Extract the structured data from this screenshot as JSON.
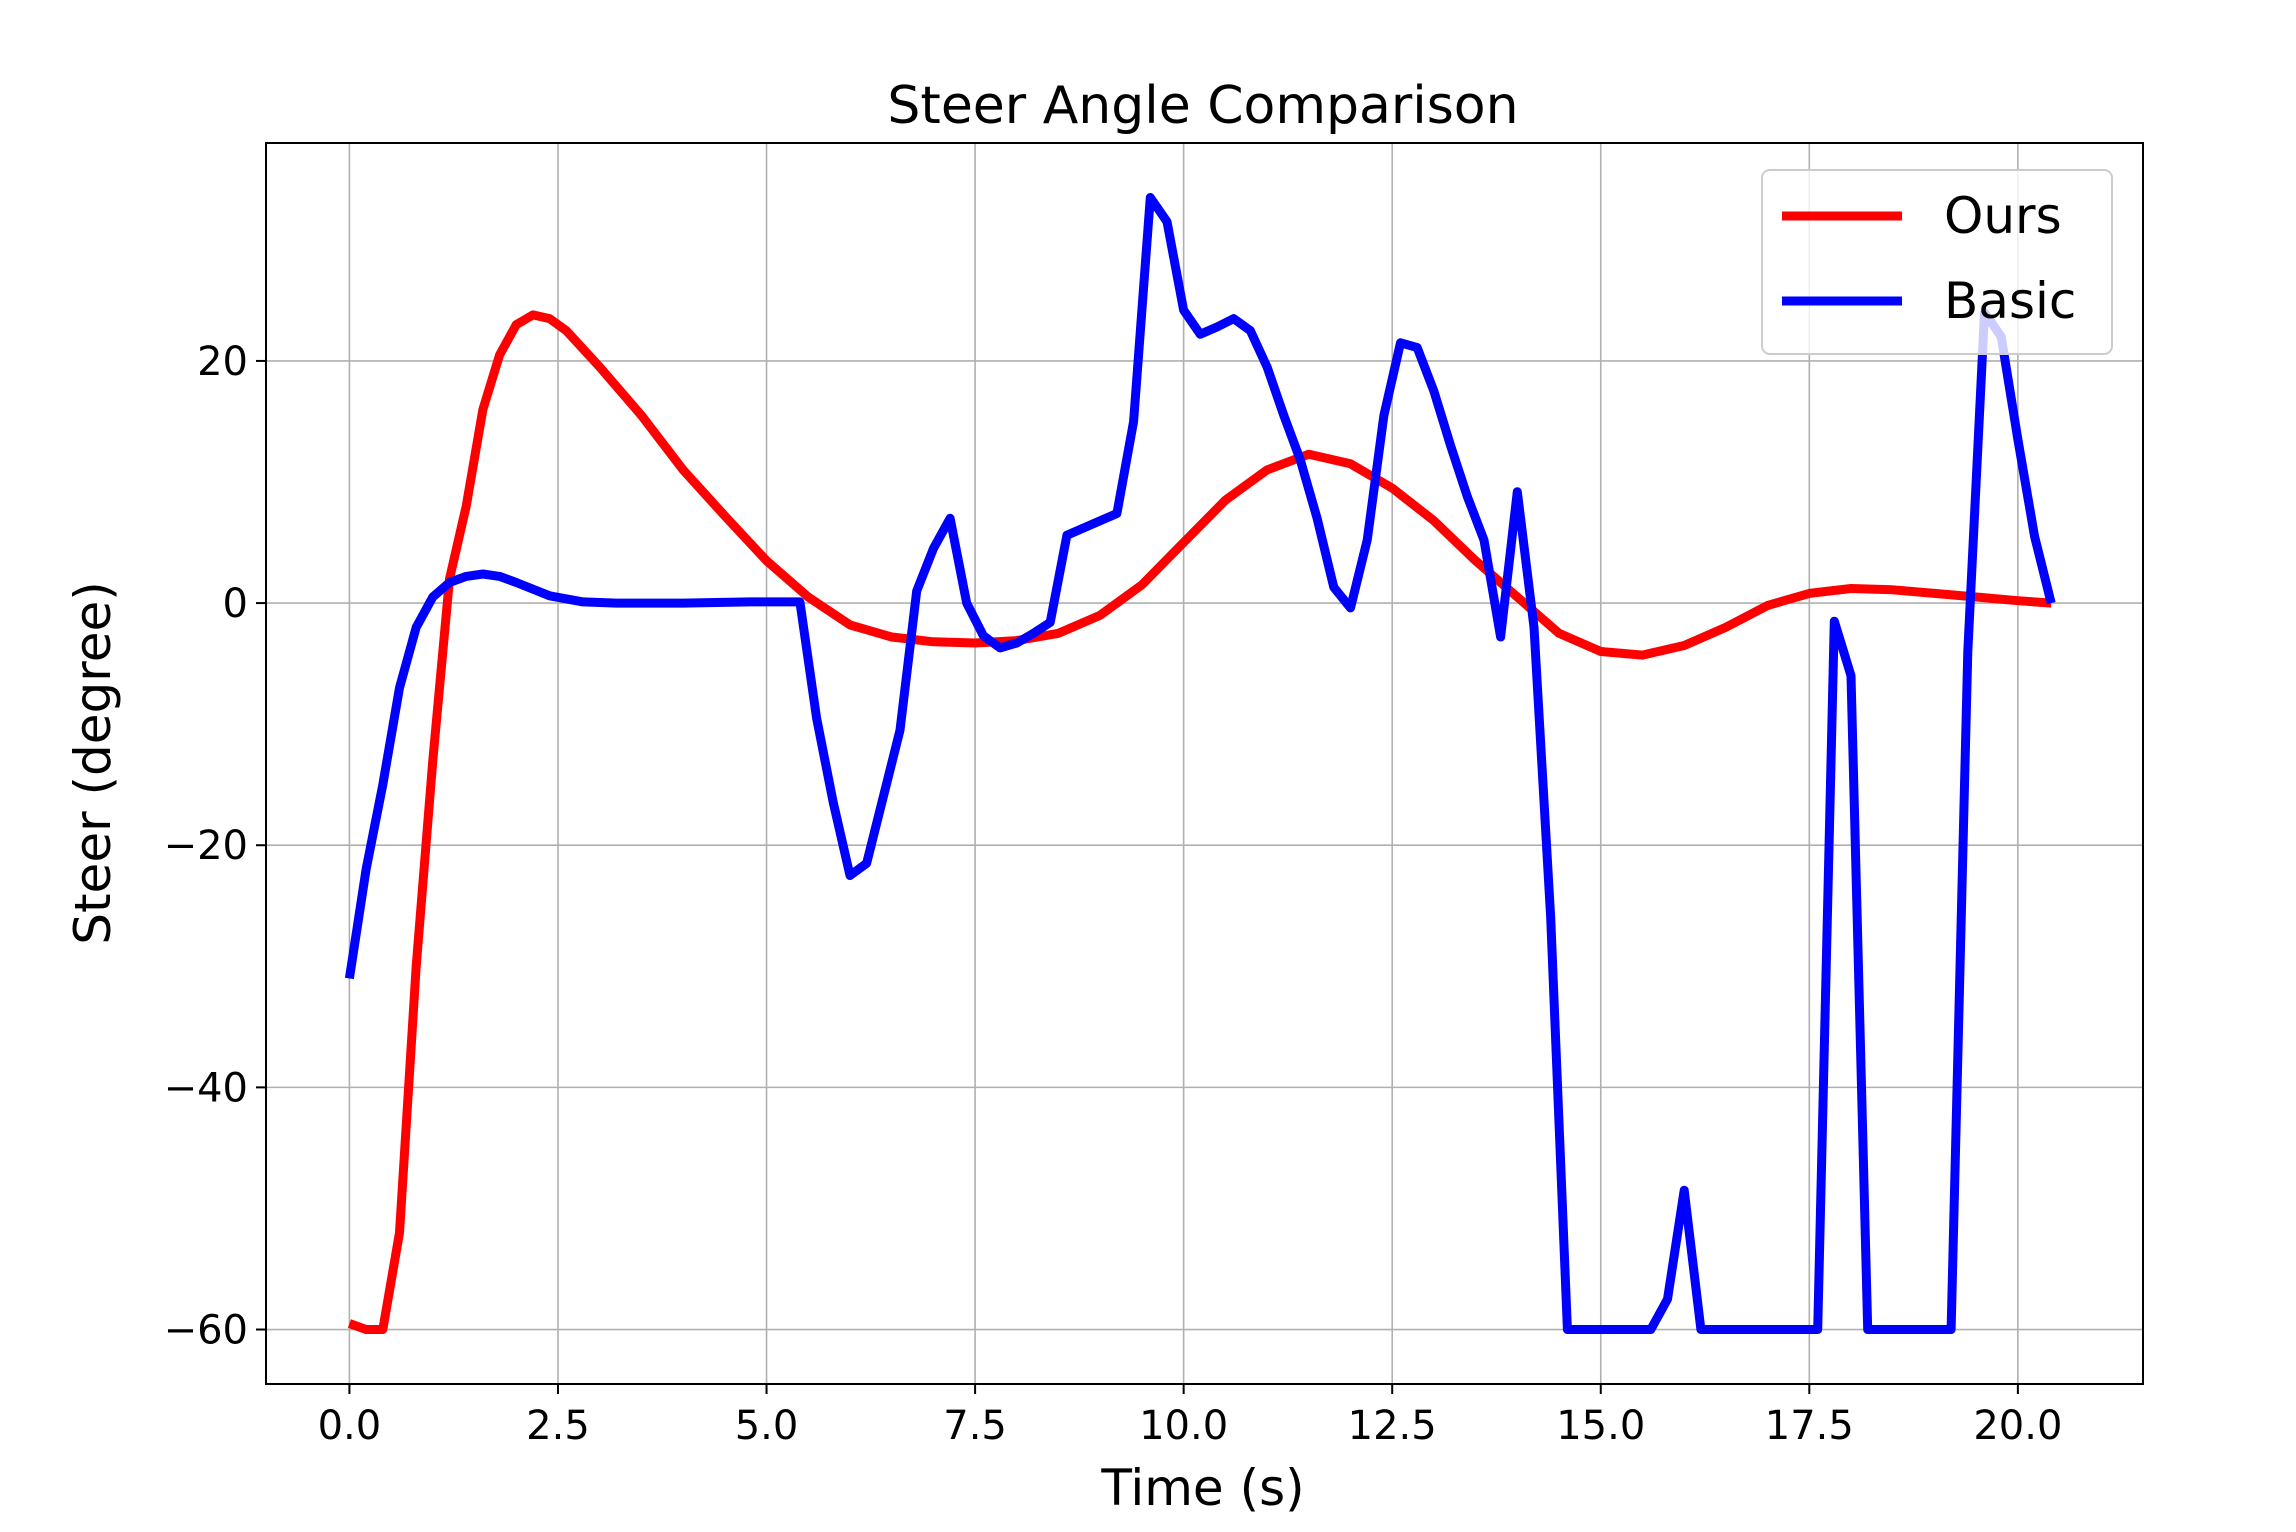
{
  "chart_data": {
    "type": "line",
    "title": "Steer Angle Comparison",
    "xlabel": "Time (s)",
    "ylabel": "Steer (degree)",
    "xlim": [
      -1.0,
      21.5
    ],
    "ylim": [
      -64.5,
      38.0
    ],
    "xticks": [
      0,
      2.5,
      5,
      7.5,
      10,
      12.5,
      15,
      17.5,
      20
    ],
    "xtick_labels": [
      "0.0",
      "2.5",
      "5.0",
      "7.5",
      "10.0",
      "12.5",
      "15.0",
      "17.5",
      "20.0"
    ],
    "yticks": [
      -60,
      -40,
      -20,
      0,
      20
    ],
    "ytick_labels": [
      "−60",
      "−40",
      "−20",
      "0",
      "20"
    ],
    "grid": true,
    "legend_position": "top-right",
    "series": [
      {
        "name": "Ours",
        "color": "#ff0000",
        "points": [
          [
            0,
            -59.5
          ],
          [
            0.2,
            -60
          ],
          [
            0.4,
            -60
          ],
          [
            0.6,
            -52
          ],
          [
            0.8,
            -30
          ],
          [
            1.0,
            -13
          ],
          [
            1.2,
            2
          ],
          [
            1.4,
            8
          ],
          [
            1.6,
            16
          ],
          [
            1.8,
            20.5
          ],
          [
            2.0,
            23
          ],
          [
            2.2,
            23.8
          ],
          [
            2.4,
            23.5
          ],
          [
            2.6,
            22.5
          ],
          [
            2.8,
            21
          ],
          [
            3.0,
            19.5
          ],
          [
            3.5,
            15.5
          ],
          [
            4.0,
            11
          ],
          [
            4.5,
            7.2
          ],
          [
            5.0,
            3.5
          ],
          [
            5.5,
            0.5
          ],
          [
            6.0,
            -1.8
          ],
          [
            6.5,
            -2.8
          ],
          [
            7.0,
            -3.2
          ],
          [
            7.5,
            -3.3
          ],
          [
            8.0,
            -3.1
          ],
          [
            8.5,
            -2.5
          ],
          [
            9.0,
            -1.0
          ],
          [
            9.5,
            1.5
          ],
          [
            10.0,
            5
          ],
          [
            10.5,
            8.5
          ],
          [
            11.0,
            11.0
          ],
          [
            11.5,
            12.3
          ],
          [
            12.0,
            11.5
          ],
          [
            12.5,
            9.5
          ],
          [
            13.0,
            6.8
          ],
          [
            13.5,
            3.5
          ],
          [
            14.0,
            0.5
          ],
          [
            14.5,
            -2.5
          ],
          [
            15.0,
            -4.0
          ],
          [
            15.5,
            -4.3
          ],
          [
            16.0,
            -3.5
          ],
          [
            16.5,
            -2.0
          ],
          [
            17.0,
            -0.2
          ],
          [
            17.5,
            0.8
          ],
          [
            18.0,
            1.2
          ],
          [
            18.5,
            1.1
          ],
          [
            19.0,
            0.8
          ],
          [
            19.5,
            0.5
          ],
          [
            20.0,
            0.2
          ],
          [
            20.4,
            0
          ]
        ]
      },
      {
        "name": "Basic",
        "color": "#0000ff",
        "points": [
          [
            0,
            -31
          ],
          [
            0.2,
            -22
          ],
          [
            0.4,
            -15
          ],
          [
            0.6,
            -7
          ],
          [
            0.8,
            -2
          ],
          [
            1.0,
            0.5
          ],
          [
            1.2,
            1.7
          ],
          [
            1.4,
            2.2
          ],
          [
            1.6,
            2.4
          ],
          [
            1.8,
            2.2
          ],
          [
            2.0,
            1.7
          ],
          [
            2.4,
            0.6
          ],
          [
            2.8,
            0.1
          ],
          [
            3.2,
            0
          ],
          [
            4.0,
            0
          ],
          [
            4.8,
            0.1
          ],
          [
            5.4,
            0.1
          ],
          [
            5.6,
            -9.5
          ],
          [
            5.8,
            -16.5
          ],
          [
            6.0,
            -22.5
          ],
          [
            6.2,
            -21.5
          ],
          [
            6.4,
            -16
          ],
          [
            6.6,
            -10.5
          ],
          [
            6.8,
            1
          ],
          [
            7.0,
            4.5
          ],
          [
            7.2,
            7
          ],
          [
            7.4,
            0
          ],
          [
            7.6,
            -2.7
          ],
          [
            7.8,
            -3.7
          ],
          [
            8.0,
            -3.3
          ],
          [
            8.2,
            -2.5
          ],
          [
            8.4,
            -1.6
          ],
          [
            8.6,
            5.6
          ],
          [
            8.8,
            6.2
          ],
          [
            9.0,
            6.8
          ],
          [
            9.2,
            7.4
          ],
          [
            9.4,
            15
          ],
          [
            9.6,
            33.5
          ],
          [
            9.8,
            31.5
          ],
          [
            10.0,
            24.2
          ],
          [
            10.2,
            22.2
          ],
          [
            10.4,
            22.8
          ],
          [
            10.6,
            23.5
          ],
          [
            10.8,
            22.5
          ],
          [
            11.0,
            19.5
          ],
          [
            11.2,
            15.5
          ],
          [
            11.4,
            11.8
          ],
          [
            11.6,
            7
          ],
          [
            11.8,
            1.3
          ],
          [
            12.0,
            -0.4
          ],
          [
            12.2,
            5.2
          ],
          [
            12.4,
            15.5
          ],
          [
            12.6,
            21.5
          ],
          [
            12.8,
            21.1
          ],
          [
            13.0,
            17.5
          ],
          [
            13.2,
            13
          ],
          [
            13.4,
            8.8
          ],
          [
            13.6,
            5.2
          ],
          [
            13.8,
            -2.8
          ],
          [
            14.0,
            9.2
          ],
          [
            14.2,
            -2
          ],
          [
            14.4,
            -26
          ],
          [
            14.6,
            -60
          ],
          [
            15.0,
            -60
          ],
          [
            15.4,
            -60
          ],
          [
            15.6,
            -60
          ],
          [
            15.8,
            -57.5
          ],
          [
            16.0,
            -48.5
          ],
          [
            16.2,
            -60
          ],
          [
            16.6,
            -60
          ],
          [
            17.0,
            -60
          ],
          [
            17.4,
            -60
          ],
          [
            17.6,
            -60
          ],
          [
            17.8,
            -1.5
          ],
          [
            18.0,
            -6
          ],
          [
            18.2,
            -60
          ],
          [
            18.6,
            -60
          ],
          [
            19.0,
            -60
          ],
          [
            19.2,
            -60
          ],
          [
            19.4,
            -4
          ],
          [
            19.6,
            24
          ],
          [
            19.8,
            22
          ],
          [
            20.0,
            13.5
          ],
          [
            20.2,
            5.5
          ],
          [
            20.4,
            0
          ]
        ]
      }
    ]
  }
}
